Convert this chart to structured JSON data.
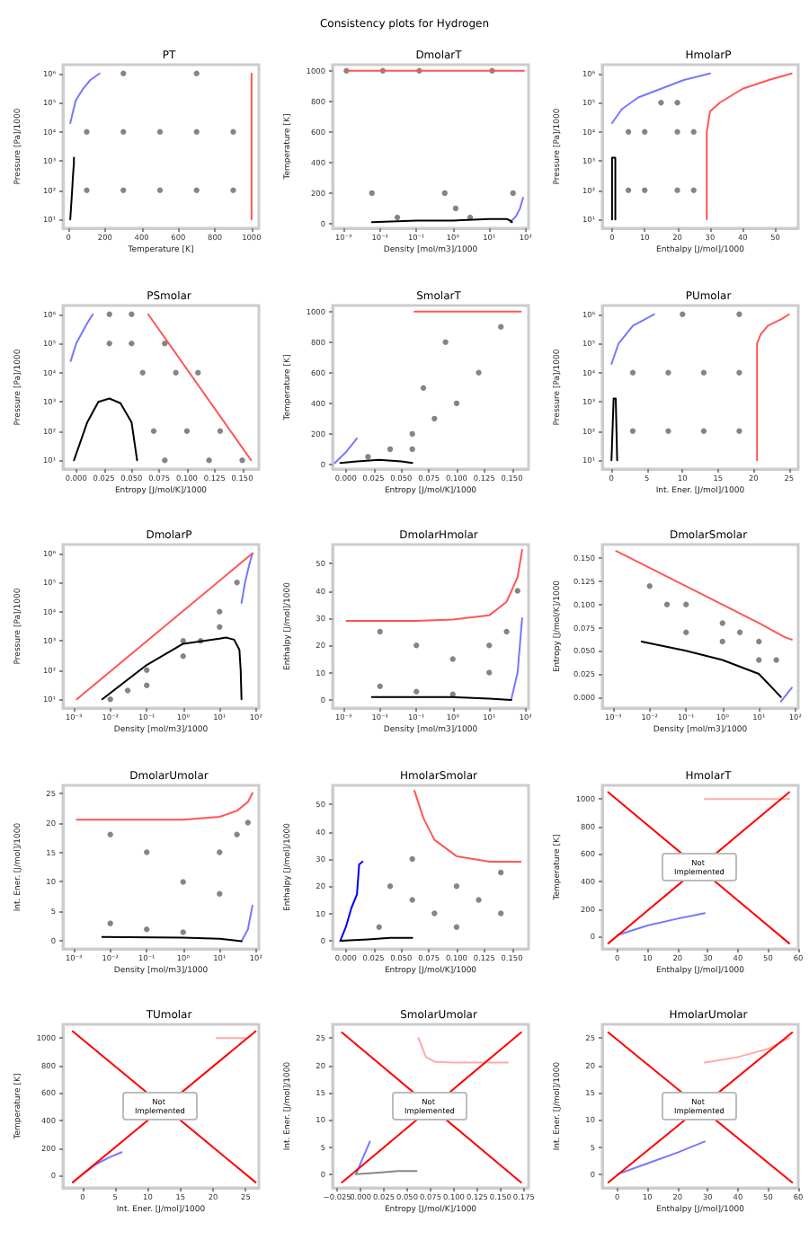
{
  "chart_data": [
    {
      "type": "scatter",
      "title": "PT",
      "xlabel": "Temperature [K]",
      "ylabel": "Pressure [Pa]/1000",
      "log": "y",
      "annotations": [
        "Consistency plots for Hydrogen"
      ],
      "xlim": [
        -30,
        1040
      ],
      "xticks": [
        0,
        200,
        400,
        600,
        800,
        1000
      ],
      "ylim": [
        5,
        2000000
      ],
      "yticks": [
        {
          "value": 10,
          "label": "10¹"
        },
        {
          "value": 100,
          "label": "10²"
        },
        {
          "value": 1000,
          "label": "10³"
        },
        {
          "value": 10000,
          "label": "10⁴"
        },
        {
          "value": 100000,
          "label": "10⁵"
        },
        {
          "value": 1000000,
          "label": "10⁶"
        }
      ],
      "series": [
        {
          "type": "scatter",
          "marker": "circle",
          "color": "#666666",
          "x": [
            100,
            300,
            500,
            700,
            900,
            100,
            300,
            500,
            700,
            900,
            300,
            700
          ],
          "values": [
            100,
            100,
            100,
            100,
            100,
            10000,
            10000,
            10000,
            10000,
            10000,
            1000000,
            1000000
          ]
        },
        {
          "type": "line",
          "color": "#7777ff",
          "x": [
            10,
            40,
            80,
            120,
            170
          ],
          "values": [
            20000,
            120000,
            300000,
            600000,
            1000000
          ]
        },
        {
          "type": "line",
          "color": "#000000",
          "x": [
            10,
            20,
            25,
            30,
            30
          ],
          "values": [
            10,
            90,
            320,
            850,
            1300
          ]
        },
        {
          "type": "line",
          "color": "#ff5555",
          "x": [
            1000,
            1000
          ],
          "values": [
            10,
            1000000
          ]
        }
      ]
    },
    {
      "type": "scatter",
      "title": "DmolarT",
      "xlabel": "Density [mol/m3]/1000",
      "ylabel": "Temperature [K]",
      "log": "x",
      "xlim": [
        0.0005,
        120
      ],
      "xticks": [
        {
          "value": 0.001,
          "label": "10⁻³"
        },
        {
          "value": 0.01,
          "label": "10⁻²"
        },
        {
          "value": 0.1,
          "label": "10⁻¹"
        },
        {
          "value": 1,
          "label": "10⁰"
        },
        {
          "value": 10,
          "label": "10¹"
        },
        {
          "value": 100,
          "label": "10²"
        }
      ],
      "ylim": [
        -30,
        1040
      ],
      "yticks": [
        0,
        200,
        400,
        600,
        800,
        1000
      ],
      "series": [
        {
          "type": "scatter",
          "marker": "circle",
          "color": "#666666",
          "x": [
            0.0012,
            0.006,
            0.03,
            0.12,
            0.6,
            3,
            12,
            45,
            1.2,
            0.012
          ],
          "values": [
            1000,
            200,
            40,
            1000,
            200,
            40,
            1000,
            200,
            100,
            1000
          ]
        },
        {
          "type": "line",
          "color": "#7777ff",
          "x": [
            38,
            55,
            70,
            85
          ],
          "values": [
            10,
            50,
            100,
            170
          ]
        },
        {
          "type": "line",
          "color": "#000000",
          "x": [
            0.006,
            0.1,
            1,
            10,
            30,
            38,
            42
          ],
          "values": [
            10,
            20,
            20,
            30,
            30,
            20,
            10
          ]
        },
        {
          "type": "line",
          "color": "#ff5555",
          "x": [
            0.0012,
            90
          ],
          "values": [
            1000,
            1000
          ]
        }
      ]
    },
    {
      "type": "scatter",
      "title": "HmolarP",
      "xlabel": "Enthalpy [J/mol]/1000",
      "ylabel": "Pressure [Pa]/1000",
      "log": "y",
      "xlim": [
        -3,
        57
      ],
      "xticks": [
        0,
        10,
        20,
        30,
        40,
        50
      ],
      "ylim": [
        5,
        2000000
      ],
      "yticks": [
        {
          "value": 10,
          "label": "10¹"
        },
        {
          "value": 100,
          "label": "10²"
        },
        {
          "value": 1000,
          "label": "10³"
        },
        {
          "value": 10000,
          "label": "10⁴"
        },
        {
          "value": 100000,
          "label": "10⁵"
        },
        {
          "value": 1000000,
          "label": "10⁶"
        }
      ],
      "series": [
        {
          "type": "scatter",
          "marker": "circle",
          "color": "#666666",
          "x": [
            5,
            10,
            20,
            25,
            5,
            10,
            20,
            25,
            15,
            20
          ],
          "values": [
            100,
            100,
            100,
            100,
            10000,
            10000,
            10000,
            10000,
            100000,
            100000
          ]
        },
        {
          "type": "line",
          "color": "#7777ff",
          "x": [
            0,
            3,
            8,
            15,
            22,
            30
          ],
          "values": [
            20000,
            60000,
            150000,
            300000,
            600000,
            1000000
          ]
        },
        {
          "type": "line",
          "color": "#000000",
          "x": [
            0,
            0,
            1,
            1
          ],
          "values": [
            10,
            1300,
            1300,
            10
          ]
        },
        {
          "type": "line",
          "color": "#ff5555",
          "x": [
            29,
            29,
            30,
            33,
            40,
            48,
            55
          ],
          "values": [
            10,
            10000,
            50000,
            100000,
            300000,
            600000,
            1000000
          ]
        }
      ]
    },
    {
      "type": "scatter",
      "title": "PSmolar",
      "xlabel": "Entropy [J/mol/K]/1000",
      "ylabel": "Pressure [Pa]/1000",
      "log": "y",
      "xlim": [
        -0.012,
        0.165
      ],
      "xticks": [
        {
          "value": 0,
          "label": "0.000"
        },
        {
          "value": 0.025,
          "label": "0.025"
        },
        {
          "value": 0.05,
          "label": "0.050"
        },
        {
          "value": 0.075,
          "label": "0.075"
        },
        {
          "value": 0.1,
          "label": "0.100"
        },
        {
          "value": 0.125,
          "label": "0.125"
        },
        {
          "value": 0.15,
          "label": "0.150"
        }
      ],
      "ylim": [
        5,
        2000000
      ],
      "yticks": [
        {
          "value": 10,
          "label": "10¹"
        },
        {
          "value": 100,
          "label": "10²"
        },
        {
          "value": 1000,
          "label": "10³"
        },
        {
          "value": 10000,
          "label": "10⁴"
        },
        {
          "value": 100000,
          "label": "10⁵"
        },
        {
          "value": 1000000,
          "label": "10⁶"
        }
      ],
      "series": [
        {
          "type": "scatter",
          "marker": "circle",
          "color": "#666666",
          "x": [
            0.08,
            0.12,
            0.15,
            0.07,
            0.1,
            0.13,
            0.06,
            0.09,
            0.11,
            0.03,
            0.05,
            0.08,
            0.03,
            0.05
          ],
          "values": [
            10,
            10,
            10,
            100,
            100,
            100,
            10000,
            10000,
            10000,
            100000,
            100000,
            100000,
            1000000,
            1000000
          ]
        },
        {
          "type": "line",
          "color": "#7777ff",
          "x": [
            -0.005,
            0,
            0.01,
            0.015
          ],
          "values": [
            25000,
            100000,
            500000,
            1000000
          ]
        },
        {
          "type": "line",
          "color": "#000000",
          "x": [
            -0.002,
            0.01,
            0.02,
            0.03,
            0.04,
            0.05,
            0.055
          ],
          "values": [
            10,
            200,
            1000,
            1300,
            900,
            200,
            10
          ]
        },
        {
          "type": "line",
          "color": "#ff5555",
          "x": [
            0.065,
            0.158
          ],
          "values": [
            1000000,
            10
          ]
        }
      ]
    },
    {
      "type": "scatter",
      "title": "SmolarT",
      "xlabel": "Entropy [J/mol/K]/1000",
      "ylabel": "Temperature [K]",
      "xlim": [
        -0.012,
        0.165
      ],
      "xticks": [
        {
          "value": 0,
          "label": "0.000"
        },
        {
          "value": 0.025,
          "label": "0.025"
        },
        {
          "value": 0.05,
          "label": "0.050"
        },
        {
          "value": 0.075,
          "label": "0.075"
        },
        {
          "value": 0.1,
          "label": "0.100"
        },
        {
          "value": 0.125,
          "label": "0.125"
        },
        {
          "value": 0.15,
          "label": "0.150"
        }
      ],
      "ylim": [
        -30,
        1040
      ],
      "yticks": [
        0,
        200,
        400,
        600,
        800,
        1000
      ],
      "series": [
        {
          "type": "scatter",
          "marker": "circle",
          "color": "#666666",
          "x": [
            0.02,
            0.04,
            0.06,
            0.08,
            0.06,
            0.1,
            0.12,
            0.09,
            0.14,
            0.07
          ],
          "values": [
            50,
            100,
            200,
            300,
            100,
            400,
            600,
            800,
            900,
            500
          ]
        },
        {
          "type": "line",
          "color": "#7777ff",
          "x": [
            -0.01,
            0,
            0.01
          ],
          "values": [
            10,
            80,
            170
          ]
        },
        {
          "type": "line",
          "color": "#000000",
          "x": [
            -0.005,
            0.01,
            0.03,
            0.05,
            0.06
          ],
          "values": [
            10,
            20,
            30,
            20,
            10
          ]
        },
        {
          "type": "line",
          "color": "#ff5555",
          "x": [
            0.062,
            0.158
          ],
          "values": [
            1000,
            1000
          ]
        }
      ]
    },
    {
      "type": "scatter",
      "title": "PUmolar",
      "xlabel": "Int. Ener. [J/mol]/1000",
      "ylabel": "Pressure [Pa]/1000",
      "log": "y",
      "xlim": [
        -1.3,
        26.3
      ],
      "xticks": [
        0,
        5,
        10,
        15,
        20,
        25
      ],
      "ylim": [
        5,
        2000000
      ],
      "yticks": [
        {
          "value": 10,
          "label": "10¹"
        },
        {
          "value": 100,
          "label": "10²"
        },
        {
          "value": 1000,
          "label": "10³"
        },
        {
          "value": 10000,
          "label": "10⁴"
        },
        {
          "value": 100000,
          "label": "10⁵"
        },
        {
          "value": 1000000,
          "label": "10⁶"
        }
      ],
      "series": [
        {
          "type": "scatter",
          "marker": "circle",
          "color": "#666666",
          "x": [
            3,
            8,
            13,
            18,
            3,
            8,
            13,
            18,
            10,
            18
          ],
          "values": [
            100,
            100,
            100,
            100,
            10000,
            10000,
            10000,
            10000,
            1000000,
            1000000
          ]
        },
        {
          "type": "line",
          "color": "#7777ff",
          "x": [
            0,
            1,
            3,
            6
          ],
          "values": [
            20000,
            100000,
            400000,
            1000000
          ]
        },
        {
          "type": "line",
          "color": "#000000",
          "x": [
            0,
            0.3,
            0.6,
            0.8
          ],
          "values": [
            10,
            1300,
            1300,
            10
          ]
        },
        {
          "type": "line",
          "color": "#ff5555",
          "x": [
            20.5,
            20.5,
            21,
            22,
            24,
            25
          ],
          "values": [
            10,
            100000,
            200000,
            400000,
            700000,
            1000000
          ]
        }
      ]
    },
    {
      "type": "scatter",
      "title": "DmolarP",
      "xlabel": "Density [mol/m3]/1000",
      "ylabel": "Pressure [Pa]/1000",
      "log": "xy",
      "xlim": [
        0.0005,
        120
      ],
      "xticks": [
        {
          "value": 0.001,
          "label": "10⁻³"
        },
        {
          "value": 0.01,
          "label": "10⁻²"
        },
        {
          "value": 0.1,
          "label": "10⁻¹"
        },
        {
          "value": 1,
          "label": "10⁰"
        },
        {
          "value": 10,
          "label": "10¹"
        },
        {
          "value": 100,
          "label": "10²"
        }
      ],
      "ylim": [
        5,
        2000000
      ],
      "yticks": [
        {
          "value": 10,
          "label": "10¹"
        },
        {
          "value": 100,
          "label": "10²"
        },
        {
          "value": 1000,
          "label": "10³"
        },
        {
          "value": 10000,
          "label": "10⁴"
        },
        {
          "value": 100000,
          "label": "10⁵"
        },
        {
          "value": 1000000,
          "label": "10⁶"
        }
      ],
      "series": [
        {
          "type": "scatter",
          "marker": "circle",
          "color": "#666666",
          "x": [
            0.01,
            0.1,
            0.1,
            1,
            1,
            10,
            10,
            30,
            3,
            0.03
          ],
          "values": [
            10,
            100,
            30,
            1000,
            300,
            10000,
            3000,
            100000,
            1000,
            20
          ]
        },
        {
          "type": "line",
          "color": "#7777ff",
          "x": [
            40,
            50,
            65,
            80
          ],
          "values": [
            20000,
            100000,
            400000,
            1000000
          ]
        },
        {
          "type": "line",
          "color": "#000000",
          "x": [
            0.006,
            0.1,
            1,
            10,
            15,
            25,
            35,
            38,
            40
          ],
          "values": [
            10,
            150,
            800,
            1200,
            1300,
            1100,
            500,
            100,
            10
          ]
        },
        {
          "type": "line",
          "color": "#ff5555",
          "x": [
            0.0012,
            80
          ],
          "values": [
            10,
            1000000
          ]
        }
      ]
    },
    {
      "type": "scatter",
      "title": "DmolarHmolar",
      "xlabel": "Density [mol/m3]/1000",
      "ylabel": "Enthalpy [J/mol]/1000",
      "log": "x",
      "xlim": [
        0.0005,
        120
      ],
      "xticks": [
        {
          "value": 0.001,
          "label": "10⁻³"
        },
        {
          "value": 0.01,
          "label": "10⁻²"
        },
        {
          "value": 0.1,
          "label": "10⁻¹"
        },
        {
          "value": 1,
          "label": "10⁰"
        },
        {
          "value": 10,
          "label": "10¹"
        },
        {
          "value": 100,
          "label": "10²"
        }
      ],
      "ylim": [
        -3,
        57
      ],
      "yticks": [
        0,
        10,
        20,
        30,
        40,
        50
      ],
      "series": [
        {
          "type": "scatter",
          "marker": "circle",
          "color": "#666666",
          "x": [
            0.01,
            0.1,
            1,
            10,
            0.01,
            0.1,
            1,
            10,
            30,
            60
          ],
          "values": [
            25,
            20,
            15,
            10,
            5,
            3,
            2,
            20,
            25,
            40
          ]
        },
        {
          "type": "line",
          "color": "#7777ff",
          "x": [
            40,
            60,
            80
          ],
          "values": [
            0,
            10,
            30
          ]
        },
        {
          "type": "line",
          "color": "#000000",
          "x": [
            0.006,
            0.1,
            1,
            10,
            40
          ],
          "values": [
            1,
            1,
            1,
            0.5,
            0
          ]
        },
        {
          "type": "line",
          "color": "#ff5555",
          "x": [
            0.0012,
            0.1,
            1,
            10,
            30,
            60,
            80
          ],
          "values": [
            29,
            29,
            29.5,
            31,
            36,
            45,
            55
          ]
        }
      ]
    },
    {
      "type": "scatter",
      "title": "DmolarSmolar",
      "xlabel": "Density [mol/m3]/1000",
      "ylabel": "Entropy [J/mol/K]/1000",
      "log": "x",
      "xlim": [
        0.0005,
        120
      ],
      "xticks": [
        {
          "value": 0.001,
          "label": "10⁻³"
        },
        {
          "value": 0.01,
          "label": "10⁻²"
        },
        {
          "value": 0.1,
          "label": "10⁻¹"
        },
        {
          "value": 1,
          "label": "10⁰"
        },
        {
          "value": 10,
          "label": "10¹"
        },
        {
          "value": 100,
          "label": "10²"
        }
      ],
      "ylim": [
        -0.012,
        0.165
      ],
      "yticks": [
        {
          "value": 0,
          "label": "0.000"
        },
        {
          "value": 0.025,
          "label": "0.025"
        },
        {
          "value": 0.05,
          "label": "0.050"
        },
        {
          "value": 0.075,
          "label": "0.075"
        },
        {
          "value": 0.1,
          "label": "0.100"
        },
        {
          "value": 0.125,
          "label": "0.125"
        },
        {
          "value": 0.15,
          "label": "0.150"
        }
      ],
      "series": [
        {
          "type": "scatter",
          "marker": "circle",
          "color": "#666666",
          "x": [
            0.01,
            0.1,
            1,
            10,
            0.1,
            1,
            10,
            30,
            3,
            0.03
          ],
          "values": [
            0.12,
            0.1,
            0.08,
            0.06,
            0.07,
            0.06,
            0.04,
            0.04,
            0.07,
            0.1
          ]
        },
        {
          "type": "line",
          "color": "#7777ff",
          "x": [
            40,
            80
          ],
          "values": [
            -0.005,
            0.01
          ]
        },
        {
          "type": "line",
          "color": "#000000",
          "x": [
            0.006,
            0.1,
            1,
            10,
            40
          ],
          "values": [
            0.06,
            0.05,
            0.04,
            0.025,
            0
          ]
        },
        {
          "type": "line",
          "color": "#ff5555",
          "x": [
            0.0012,
            0.1,
            1,
            10,
            50,
            80
          ],
          "values": [
            0.158,
            0.12,
            0.1,
            0.08,
            0.065,
            0.062
          ]
        }
      ]
    },
    {
      "type": "scatter",
      "title": "DmolarUmolar",
      "xlabel": "Density [mol/m3]/1000",
      "ylabel": "Int. Ener. [J/mol]/1000",
      "log": "x",
      "xlim": [
        0.0005,
        120
      ],
      "xticks": [
        {
          "value": 0.001,
          "label": "10⁻³"
        },
        {
          "value": 0.01,
          "label": "10⁻²"
        },
        {
          "value": 0.1,
          "label": "10⁻¹"
        },
        {
          "value": 1,
          "label": "10⁰"
        },
        {
          "value": 10,
          "label": "10¹"
        },
        {
          "value": 100,
          "label": "10²"
        }
      ],
      "ylim": [
        -1.3,
        26.3
      ],
      "yticks": [
        0,
        5,
        10,
        15,
        20,
        25
      ],
      "series": [
        {
          "type": "scatter",
          "marker": "circle",
          "color": "#666666",
          "x": [
            0.01,
            0.1,
            1,
            10,
            0.01,
            0.1,
            1,
            10,
            30,
            60
          ],
          "values": [
            18,
            15,
            10,
            8,
            3,
            2,
            1.5,
            15,
            18,
            20
          ]
        },
        {
          "type": "line",
          "color": "#7777ff",
          "x": [
            40,
            60,
            80
          ],
          "values": [
            0,
            2,
            6
          ]
        },
        {
          "type": "line",
          "color": "#000000",
          "x": [
            0.006,
            1,
            10,
            40
          ],
          "values": [
            0.7,
            0.6,
            0.4,
            0
          ]
        },
        {
          "type": "line",
          "color": "#ff5555",
          "x": [
            0.0012,
            1,
            10,
            30,
            60,
            80
          ],
          "values": [
            20.5,
            20.5,
            21,
            22,
            23.5,
            25
          ]
        }
      ]
    },
    {
      "type": "scatter",
      "title": "HmolarSmolar",
      "xlabel": "Entropy [J/mol/K]/1000",
      "ylabel": "Enthalpy [J/mol]/1000",
      "xlim": [
        -0.012,
        0.165
      ],
      "xticks": [
        {
          "value": 0,
          "label": "0.000"
        },
        {
          "value": 0.025,
          "label": "0.025"
        },
        {
          "value": 0.05,
          "label": "0.050"
        },
        {
          "value": 0.075,
          "label": "0.075"
        },
        {
          "value": 0.1,
          "label": "0.100"
        },
        {
          "value": 0.125,
          "label": "0.125"
        },
        {
          "value": 0.15,
          "label": "0.150"
        }
      ],
      "ylim": [
        -3,
        57
      ],
      "yticks": [
        0,
        10,
        20,
        30,
        40,
        50
      ],
      "series": [
        {
          "type": "scatter",
          "marker": "circle",
          "color": "#666666",
          "x": [
            0.04,
            0.06,
            0.08,
            0.1,
            0.12,
            0.14,
            0.06,
            0.1,
            0.14,
            0.03
          ],
          "values": [
            20,
            15,
            10,
            5,
            15,
            25,
            30,
            20,
            10,
            5
          ]
        },
        {
          "type": "line",
          "color": "#0000ff",
          "x": [
            -0.005,
            0,
            0.005,
            0.01,
            0.012,
            0.015
          ],
          "values": [
            0,
            5,
            12,
            17,
            28,
            29
          ]
        },
        {
          "type": "line",
          "color": "#000000",
          "x": [
            -0.005,
            0.02,
            0.04,
            0.06
          ],
          "values": [
            0,
            0.5,
            1,
            1
          ]
        },
        {
          "type": "line",
          "color": "#ff5555",
          "x": [
            0.062,
            0.07,
            0.08,
            0.1,
            0.13,
            0.158
          ],
          "values": [
            55,
            45,
            37,
            31,
            29,
            29
          ]
        }
      ]
    },
    {
      "type": "scatter",
      "title": "HmolarT",
      "xlabel": "Enthalpy [J/mol]/1000",
      "ylabel": "Temperature [K]",
      "annotations": [
        "Not Implemented"
      ],
      "xlim": [
        -5,
        60
      ],
      "xticks": [
        0,
        10,
        20,
        30,
        40,
        50,
        60
      ],
      "ylim": [
        -90,
        1100
      ],
      "yticks": [
        0,
        200,
        400,
        600,
        800,
        1000
      ],
      "series": [
        {
          "type": "line",
          "color": "#ffaaaa",
          "x": [
            29,
            57
          ],
          "values": [
            1000,
            1000
          ]
        },
        {
          "type": "line",
          "color": "#7777ff",
          "x": [
            0,
            10,
            20,
            29
          ],
          "values": [
            10,
            80,
            130,
            170
          ]
        },
        {
          "type": "line",
          "color": "#ff0000",
          "x": [
            -3,
            57
          ],
          "values": [
            -50,
            1050
          ]
        },
        {
          "type": "line",
          "color": "#ff0000",
          "x": [
            -3,
            57
          ],
          "values": [
            1050,
            -50
          ]
        }
      ]
    },
    {
      "type": "scatter",
      "title": "TUmolar",
      "xlabel": "Int. Ener. [J/mol]/1000",
      "ylabel": "Temperature [K]",
      "annotations": [
        "Not Implemented"
      ],
      "xlim": [
        -3,
        27
      ],
      "xticks": [
        0,
        5,
        10,
        15,
        20,
        25
      ],
      "ylim": [
        -90,
        1100
      ],
      "yticks": [
        0,
        200,
        400,
        600,
        800,
        1000
      ],
      "series": [
        {
          "type": "line",
          "color": "#ffaaaa",
          "x": [
            20.5,
            25
          ],
          "values": [
            1000,
            1000
          ]
        },
        {
          "type": "line",
          "color": "#7777ff",
          "x": [
            0,
            2,
            4,
            6
          ],
          "values": [
            10,
            80,
            130,
            170
          ]
        },
        {
          "type": "line",
          "color": "#ff0000",
          "x": [
            -1.5,
            26.5
          ],
          "values": [
            -50,
            1050
          ]
        },
        {
          "type": "line",
          "color": "#ff0000",
          "x": [
            -1.5,
            26.5
          ],
          "values": [
            1050,
            -50
          ]
        }
      ]
    },
    {
      "type": "scatter",
      "title": "SmolarUmolar",
      "xlabel": "Entropy [J/mol/K]/1000",
      "ylabel": "Int. Ener. [J/mol]/1000",
      "annotations": [
        "Not Implemented"
      ],
      "xlim": [
        -0.03,
        0.18
      ],
      "xticks": [
        {
          "value": -0.025,
          "label": "−0.025"
        },
        {
          "value": 0,
          "label": "0.000"
        },
        {
          "value": 0.025,
          "label": "0.025"
        },
        {
          "value": 0.05,
          "label": "0.050"
        },
        {
          "value": 0.075,
          "label": "0.075"
        },
        {
          "value": 0.1,
          "label": "0.100"
        },
        {
          "value": 0.125,
          "label": "0.125"
        },
        {
          "value": 0.15,
          "label": "0.150"
        },
        {
          "value": 0.175,
          "label": "0.175"
        }
      ],
      "ylim": [
        -2.5,
        27.5
      ],
      "yticks": [
        0,
        5,
        10,
        15,
        20,
        25
      ],
      "series": [
        {
          "type": "line",
          "color": "#ffaaaa",
          "x": [
            0.062,
            0.07,
            0.08,
            0.1,
            0.158
          ],
          "values": [
            25,
            21.5,
            20.6,
            20.5,
            20.5
          ]
        },
        {
          "type": "line",
          "color": "#7777ff",
          "x": [
            -0.005,
            0,
            0.01
          ],
          "values": [
            0,
            2,
            6
          ]
        },
        {
          "type": "line",
          "color": "#888888",
          "x": [
            -0.005,
            0.02,
            0.04,
            0.06
          ],
          "values": [
            0,
            0.3,
            0.6,
            0.6
          ]
        },
        {
          "type": "line",
          "color": "#ff0000",
          "x": [
            -0.02,
            0.172
          ],
          "values": [
            -1.5,
            26
          ]
        },
        {
          "type": "line",
          "color": "#ff0000",
          "x": [
            -0.02,
            0.172
          ],
          "values": [
            26,
            -1.5
          ]
        }
      ]
    },
    {
      "type": "scatter",
      "title": "HmolarUmolar",
      "xlabel": "Enthalpy [J/mol]/1000",
      "ylabel": "Int. Ener. [J/mol]/1000",
      "annotations": [
        "Not Implemented"
      ],
      "xlim": [
        -5,
        60
      ],
      "xticks": [
        0,
        10,
        20,
        30,
        40,
        50,
        60
      ],
      "ylim": [
        -2.5,
        27.5
      ],
      "yticks": [
        0,
        5,
        10,
        15,
        20,
        25
      ],
      "series": [
        {
          "type": "line",
          "color": "#ffaaaa",
          "x": [
            29,
            40,
            50,
            57
          ],
          "values": [
            20.5,
            21.5,
            23,
            25
          ]
        },
        {
          "type": "line",
          "color": "#7777ff",
          "x": [
            0,
            10,
            20,
            29
          ],
          "values": [
            0,
            2,
            4,
            6
          ]
        },
        {
          "type": "line",
          "color": "#ff0000",
          "x": [
            -3,
            58
          ],
          "values": [
            -1.5,
            26
          ]
        },
        {
          "type": "line",
          "color": "#ff0000",
          "x": [
            -3,
            58
          ],
          "values": [
            26,
            -1.5
          ]
        }
      ]
    }
  ]
}
